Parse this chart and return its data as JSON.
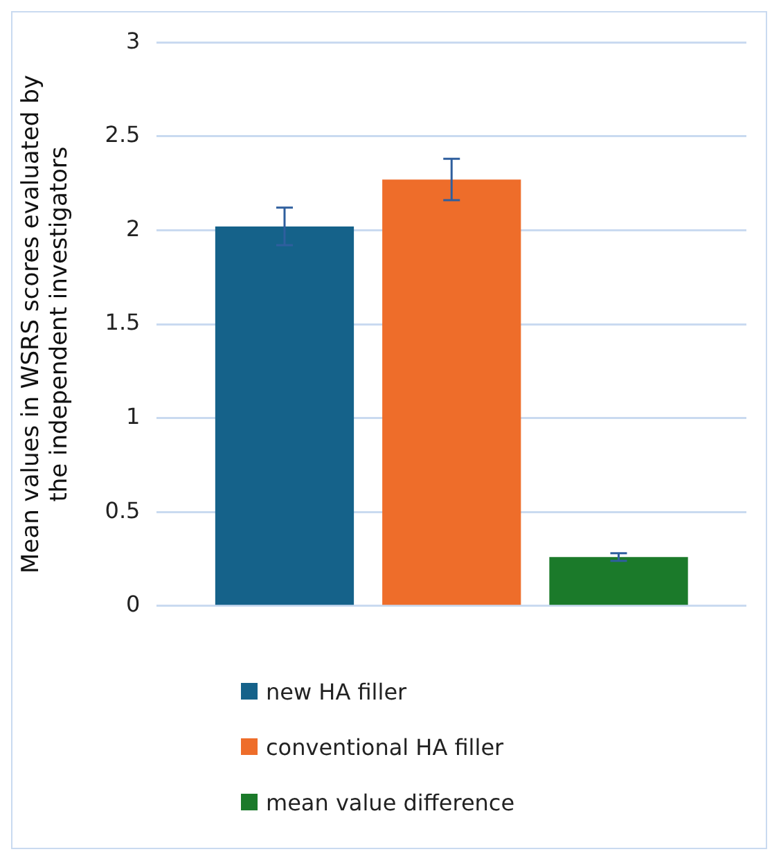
{
  "chart_data": {
    "type": "bar",
    "ylabel": "Mean values in WSRS scores evaluated by\nthe independent investigators",
    "categories": [
      null
    ],
    "series": [
      {
        "name": "new HA filler",
        "color": "#15628a",
        "values": [
          2.02
        ],
        "errors": [
          0.1
        ]
      },
      {
        "name": "conventional HA filler",
        "color": "#ee6d2a",
        "values": [
          2.27
        ],
        "errors": [
          [
            2.16,
            2.38
          ]
        ]
      },
      {
        "name": "mean value difference",
        "color": "#1b7a2a",
        "values": [
          0.26
        ],
        "errors": [
          0.02
        ]
      }
    ],
    "ylim": [
      0,
      3
    ],
    "yticks": [
      0,
      0.5,
      1,
      1.5,
      2,
      2.5,
      3
    ],
    "grid": "y",
    "legend": "bottom"
  }
}
